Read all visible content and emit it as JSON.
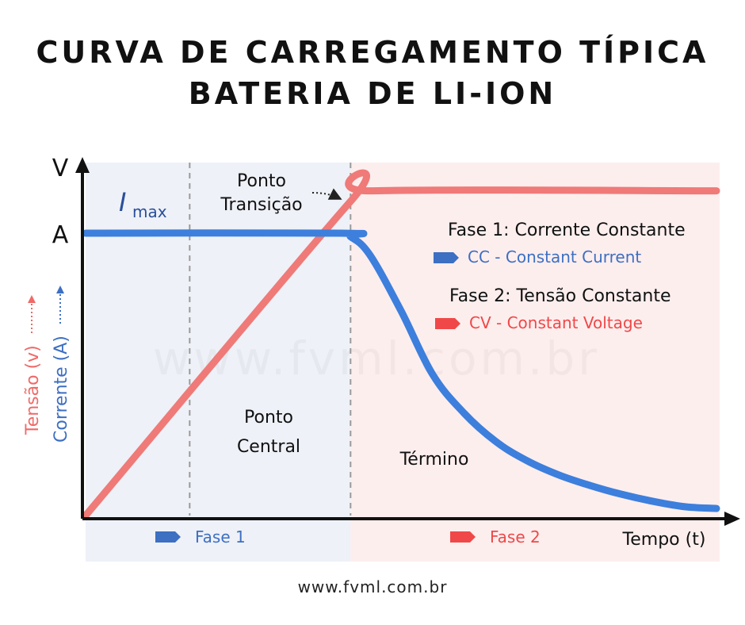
{
  "title_line1": "CURVA DE CARREGAMENTO TÍPICA",
  "title_line2": "BATERIA DE LI-ION",
  "footer": "www.fvml.com.br",
  "watermark": "www.fvml.com.br",
  "colors": {
    "voltage": "#ef7a78",
    "current": "#3d7fdc",
    "phase1_bg": "#eef1f7",
    "phase2_bg": "#fdeeee",
    "cc_arrow": "#3d6fc2",
    "cv_arrow": "#f04848"
  },
  "labels": {
    "imax_symbol": "I",
    "imax_sub": "max",
    "transition_line1": "Ponto",
    "transition_line2": "Transição",
    "central_line1": "Ponto",
    "central_line2": "Central",
    "termino": "Término",
    "fase1": "Fase 1",
    "fase2": "Fase 2"
  },
  "legend": {
    "phase1_title": "Fase 1: Corrente Constante",
    "phase1_sub": "CC - Constant Current",
    "phase2_title": "Fase 2: Tensão Constante",
    "phase2_sub": "CV - Constant Voltage"
  },
  "chart_data": {
    "type": "line",
    "xlabel": "Tempo (t)",
    "ylabel_voltage": "Tensão (v)",
    "ylabel_current": "Corrente (A)",
    "y_tick_voltage": "V",
    "y_tick_current": "A",
    "x_range": [
      0,
      1
    ],
    "y_range": [
      0,
      1
    ],
    "phase_boundary_x": 0.42,
    "central_point_x": 0.165,
    "series": [
      {
        "name": "Tensão (v)",
        "x": [
          0,
          0.42,
          0.455,
          1
        ],
        "y": [
          0,
          0.89,
          0.92,
          0.92
        ]
      },
      {
        "name": "Corrente (A)",
        "x": [
          0,
          0.405,
          0.42,
          0.45,
          0.5,
          0.55,
          0.6,
          0.65,
          0.7,
          0.75,
          0.8,
          0.85,
          0.9,
          0.95,
          1
        ],
        "y": [
          0.8,
          0.8,
          0.79,
          0.74,
          0.58,
          0.4,
          0.29,
          0.21,
          0.155,
          0.115,
          0.085,
          0.06,
          0.04,
          0.025,
          0.02
        ]
      }
    ]
  }
}
